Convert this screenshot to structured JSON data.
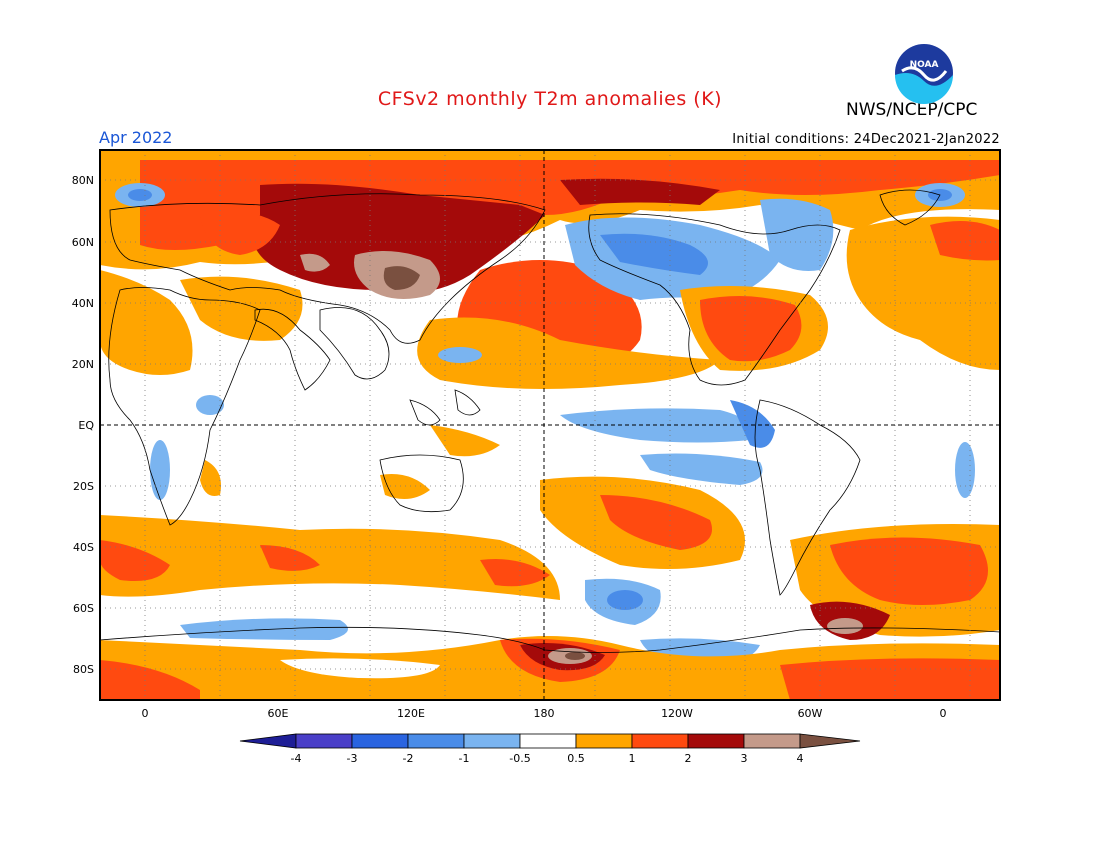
{
  "header": {
    "title": "CFSv2 monthly T2m anomalies (K)",
    "month": "Apr 2022",
    "initial_conditions": "Initial conditions: 24Dec2021-2Jan2022",
    "agency": "NWS/NCEP/CPC",
    "logo_text": "NOAA"
  },
  "map": {
    "projection": "cylindrical equidistant",
    "lat_labels": [
      "80N",
      "60N",
      "40N",
      "20N",
      "EQ",
      "20S",
      "40S",
      "60S",
      "80S"
    ],
    "lon_labels": [
      "0",
      "60E",
      "120E",
      "180",
      "120W",
      "60W",
      "0"
    ],
    "grid": "dotted 30°, dashed equator and 180 line"
  },
  "colorbar": {
    "labels": [
      "-4",
      "-3",
      "-2",
      "-1",
      "-0.5",
      "0.5",
      "1",
      "2",
      "3",
      "4"
    ],
    "colors": [
      "#1e1e96",
      "#4a3fc8",
      "#2a64e0",
      "#4a8ce8",
      "#7ab4f0",
      "#ffffff",
      "#ffa500",
      "#ff4a10",
      "#a40a0a",
      "#c49a8a",
      "#7a5040"
    ]
  },
  "colors": {
    "title": "#e01818",
    "month": "#1a56d6",
    "cold_strong": "#4a8ce8",
    "cold_weak": "#7ab4f0",
    "warm_weak": "#ffa500",
    "warm_mid": "#ff4a10",
    "warm_strong": "#a40a0a",
    "warm_extreme": "#c49a8a",
    "warm_max": "#7a5040"
  }
}
